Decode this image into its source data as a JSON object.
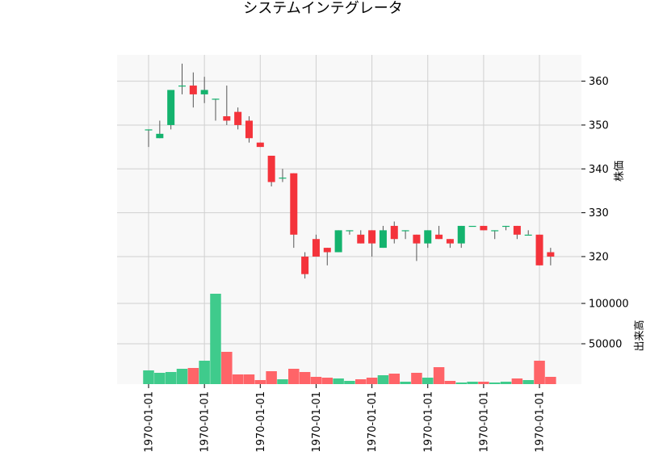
{
  "chart_data": {
    "type": "candlestick",
    "title": "システムインテグレータ",
    "price_axis_label": "株価",
    "volume_axis_label": "出来高",
    "price_ylim": [
      313,
      366
    ],
    "price_ticks": [
      320,
      330,
      340,
      350,
      360
    ],
    "volume_ylim": [
      0,
      120000
    ],
    "volume_ticks": [
      50000,
      100000
    ],
    "x_tick_labels": [
      "1970-01-01",
      "1970-01-01",
      "1970-01-01",
      "1970-01-01",
      "1970-01-01",
      "1970-01-01",
      "1970-01-01",
      "1970-01-01"
    ],
    "x_tick_indices": [
      0,
      5,
      10,
      15,
      20,
      25,
      30,
      35
    ],
    "grid": true,
    "colors": {
      "up": "#14b36e",
      "down": "#f4333b",
      "volume_up": "#3fcb8c",
      "volume_down": "#ff6468",
      "grid": "#d0d0d0",
      "panel_bg": "#f8f8f8",
      "wick": "#555555"
    },
    "candles": [
      {
        "o": 349,
        "h": 349,
        "l": 345,
        "c": 349,
        "v": 17000
      },
      {
        "o": 347,
        "h": 351,
        "l": 347,
        "c": 348,
        "v": 14000
      },
      {
        "o": 350,
        "h": 358,
        "l": 349,
        "c": 358,
        "v": 15000
      },
      {
        "o": 359,
        "h": 364,
        "l": 357,
        "c": 359,
        "v": 19000
      },
      {
        "o": 359,
        "h": 362,
        "l": 354,
        "c": 357,
        "v": 20000
      },
      {
        "o": 357,
        "h": 361,
        "l": 355,
        "c": 358,
        "v": 29000
      },
      {
        "o": 356,
        "h": 356,
        "l": 351,
        "c": 356,
        "v": 112000
      },
      {
        "o": 352,
        "h": 359,
        "l": 350,
        "c": 351,
        "v": 40000
      },
      {
        "o": 353,
        "h": 354,
        "l": 349,
        "c": 350,
        "v": 12000
      },
      {
        "o": 351,
        "h": 352,
        "l": 346,
        "c": 347,
        "v": 12000
      },
      {
        "o": 346,
        "h": 346,
        "l": 345,
        "c": 345,
        "v": 5000
      },
      {
        "o": 343,
        "h": 343,
        "l": 336,
        "c": 337,
        "v": 16000
      },
      {
        "o": 338,
        "h": 340,
        "l": 337,
        "c": 338,
        "v": 6000
      },
      {
        "o": 339,
        "h": 339,
        "l": 322,
        "c": 325,
        "v": 19000
      },
      {
        "o": 320,
        "h": 321,
        "l": 315,
        "c": 316,
        "v": 15000
      },
      {
        "o": 324,
        "h": 325,
        "l": 320,
        "c": 320,
        "v": 9000
      },
      {
        "o": 322,
        "h": 322,
        "l": 318,
        "c": 321,
        "v": 8000
      },
      {
        "o": 321,
        "h": 326,
        "l": 321,
        "c": 326,
        "v": 7000
      },
      {
        "o": 326,
        "h": 326,
        "l": 325,
        "c": 326,
        "v": 4000
      },
      {
        "o": 325,
        "h": 326,
        "l": 323,
        "c": 323,
        "v": 6000
      },
      {
        "o": 326,
        "h": 326,
        "l": 320,
        "c": 323,
        "v": 8000
      },
      {
        "o": 322,
        "h": 327,
        "l": 322,
        "c": 326,
        "v": 11000
      },
      {
        "o": 327,
        "h": 328,
        "l": 323,
        "c": 324,
        "v": 13000
      },
      {
        "o": 326,
        "h": 326,
        "l": 324,
        "c": 326,
        "v": 3000
      },
      {
        "o": 325,
        "h": 325,
        "l": 319,
        "c": 323,
        "v": 14000
      },
      {
        "o": 323,
        "h": 326,
        "l": 322,
        "c": 326,
        "v": 8000
      },
      {
        "o": 325,
        "h": 327,
        "l": 324,
        "c": 324,
        "v": 21000
      },
      {
        "o": 324,
        "h": 324,
        "l": 322,
        "c": 323,
        "v": 4000
      },
      {
        "o": 323,
        "h": 327,
        "l": 322,
        "c": 327,
        "v": 2000
      },
      {
        "o": 327,
        "h": 327,
        "l": 327,
        "c": 327,
        "v": 3000
      },
      {
        "o": 327,
        "h": 327,
        "l": 326,
        "c": 326,
        "v": 3000
      },
      {
        "o": 326,
        "h": 326,
        "l": 324,
        "c": 326,
        "v": 2000
      },
      {
        "o": 327,
        "h": 327,
        "l": 326,
        "c": 327,
        "v": 3000
      },
      {
        "o": 327,
        "h": 327,
        "l": 324,
        "c": 325,
        "v": 7000
      },
      {
        "o": 325,
        "h": 326,
        "l": 325,
        "c": 325,
        "v": 5000
      },
      {
        "o": 325,
        "h": 325,
        "l": 318,
        "c": 318,
        "v": 29000
      },
      {
        "o": 321,
        "h": 322,
        "l": 318,
        "c": 320,
        "v": 9000
      }
    ]
  }
}
